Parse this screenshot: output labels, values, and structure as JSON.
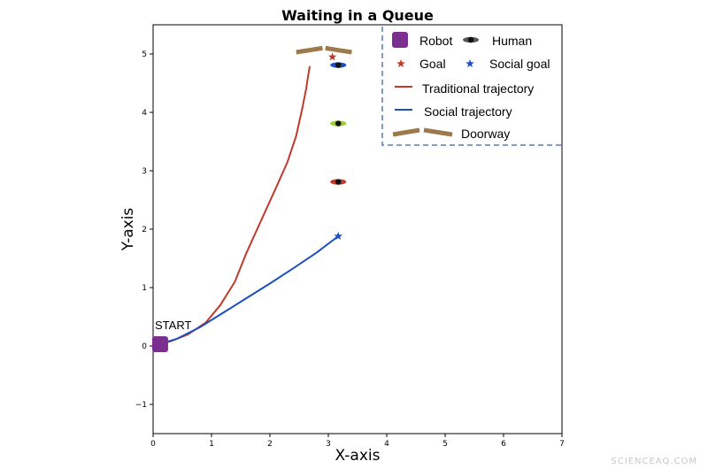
{
  "chart_data": {
    "type": "scatter",
    "title": "Waiting in a Queue",
    "xlabel": "X-axis",
    "ylabel": "Y-axis",
    "xlim": [
      0,
      7
    ],
    "ylim": [
      -1.5,
      5.5
    ],
    "xticks": [
      0,
      1,
      2,
      3,
      4,
      5,
      6,
      7
    ],
    "yticks": [
      -1,
      0,
      1,
      2,
      3,
      4,
      5
    ],
    "grid": false,
    "legend_position": "top-right",
    "start_label": "START",
    "robot": {
      "x": 0.12,
      "y": 0.03,
      "color": "#7b2e8e"
    },
    "humans": [
      {
        "x": 3.17,
        "y": 4.81,
        "color": "#1f4fbf"
      },
      {
        "x": 3.17,
        "y": 3.81,
        "color": "#9acd32"
      },
      {
        "x": 3.17,
        "y": 2.81,
        "color": "#c0392b"
      }
    ],
    "goal": {
      "x": 3.07,
      "y": 4.95,
      "color": "#c0392b"
    },
    "social_goal": {
      "x": 3.17,
      "y": 1.88,
      "color": "#1f4fbf"
    },
    "doorway": {
      "color": "#9c7a4b",
      "left": {
        "x": [
          2.45,
          2.9
        ],
        "y": [
          5.03,
          5.1
        ]
      },
      "right": {
        "x": [
          2.95,
          3.4
        ],
        "y": [
          5.1,
          5.03
        ]
      }
    },
    "series": [
      {
        "name": "Traditional trajectory",
        "color": "#c0392b",
        "x": [
          0.05,
          0.3,
          0.6,
          0.9,
          1.15,
          1.4,
          1.6,
          1.85,
          2.1,
          2.3,
          2.45,
          2.55,
          2.62,
          2.65,
          2.68
        ],
        "y": [
          0.02,
          0.08,
          0.2,
          0.4,
          0.7,
          1.1,
          1.6,
          2.15,
          2.7,
          3.15,
          3.6,
          4.05,
          4.4,
          4.6,
          4.78
        ]
      },
      {
        "name": "Social trajectory",
        "color": "#1f4fbf",
        "x": [
          0.05,
          0.4,
          0.8,
          1.2,
          1.6,
          2.0,
          2.4,
          2.8,
          3.17
        ],
        "y": [
          0.02,
          0.12,
          0.32,
          0.57,
          0.82,
          1.07,
          1.33,
          1.6,
          1.88
        ]
      }
    ],
    "legend": [
      {
        "label": "Robot",
        "symbol": "square",
        "color": "#7b2e8e"
      },
      {
        "label": "Human",
        "symbol": "human",
        "color": "#555555"
      },
      {
        "label": "Goal",
        "symbol": "star",
        "color": "#c0392b"
      },
      {
        "label": "Social goal",
        "symbol": "star",
        "color": "#1f4fbf"
      },
      {
        "label": "Traditional trajectory",
        "symbol": "line",
        "color": "#c0392b"
      },
      {
        "label": "Social trajectory",
        "symbol": "line",
        "color": "#1f4fbf"
      },
      {
        "label": "Doorway",
        "symbol": "doorway",
        "color": "#9c7a4b"
      }
    ]
  },
  "watermark": "SCIENCEAQ.COM"
}
